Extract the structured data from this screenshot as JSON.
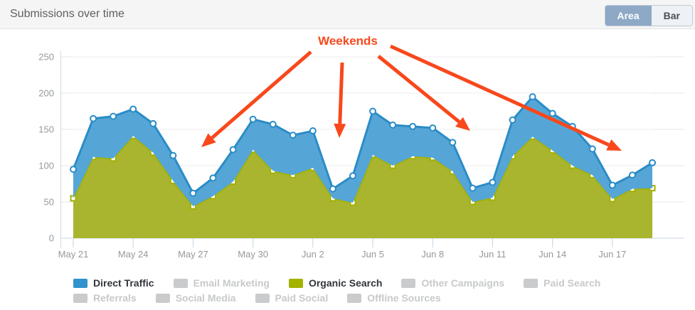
{
  "header": {
    "title": "Submissions over time",
    "view_toggle": {
      "area_label": "Area",
      "bar_label": "Bar",
      "selected": "Area"
    }
  },
  "chart_data": {
    "type": "area",
    "stacked": true,
    "title": "Submissions over time",
    "x": [
      "May 21",
      "May 22",
      "May 23",
      "May 24",
      "May 25",
      "May 26",
      "May 27",
      "May 28",
      "May 29",
      "May 30",
      "May 31",
      "Jun 1",
      "Jun 2",
      "Jun 3",
      "Jun 4",
      "Jun 5",
      "Jun 6",
      "Jun 7",
      "Jun 8",
      "Jun 9",
      "Jun 10",
      "Jun 11",
      "Jun 12",
      "Jun 13",
      "Jun 14",
      "Jun 15",
      "Jun 16",
      "Jun 17",
      "Jun 18",
      "Jun 19"
    ],
    "xtick_every": 3,
    "xtick_labels": [
      "May 21",
      "May 24",
      "May 27",
      "May 30",
      "Jun 2",
      "Jun 5",
      "Jun 8",
      "Jun 11",
      "Jun 14",
      "Jun 17"
    ],
    "ylim": [
      0,
      250
    ],
    "yticks": [
      0,
      50,
      100,
      150,
      200,
      250
    ],
    "grid": true,
    "series": [
      {
        "name": "Organic Search",
        "line_color": "#a3b100",
        "fill_color": "#a9b52f",
        "marker": "square",
        "values": [
          55,
          112,
          110,
          141,
          118,
          79,
          44,
          58,
          78,
          122,
          93,
          87,
          97,
          55,
          49,
          115,
          100,
          113,
          111,
          92,
          50,
          56,
          113,
          140,
          121,
          100,
          87,
          54,
          68,
          69
        ]
      },
      {
        "name": "Direct Traffic",
        "line_color": "#2a8cc7",
        "fill_color": "#55a6d6",
        "marker": "circle",
        "values": [
          40,
          53,
          58,
          37,
          40,
          35,
          18,
          25,
          44,
          42,
          64,
          55,
          51,
          13,
          37,
          60,
          56,
          41,
          41,
          40,
          19,
          21,
          50,
          55,
          51,
          54,
          36,
          19,
          19,
          35
        ],
        "stacked_top_totals": [
          95,
          165,
          168,
          178,
          158,
          114,
          62,
          83,
          122,
          164,
          157,
          142,
          148,
          68,
          86,
          175,
          156,
          154,
          152,
          132,
          69,
          77,
          163,
          195,
          172,
          154,
          123,
          73,
          87,
          104
        ]
      }
    ],
    "annotation": {
      "text": "Weekends",
      "color": "#f8481c",
      "text_pos": [
        489,
        63
      ],
      "arrows": [
        {
          "from": [
            437,
            73
          ],
          "to": [
            283,
            207
          ]
        },
        {
          "from": [
            481,
            88
          ],
          "to": [
            477,
            194
          ]
        },
        {
          "from": [
            532,
            79
          ],
          "to": [
            661,
            184
          ]
        },
        {
          "from": [
            549,
            65
          ],
          "to": [
            874,
            212
          ]
        }
      ]
    }
  },
  "legend": {
    "active_text_color": "#32363c",
    "inactive_text_color": "#c7c9cb",
    "inactive_swatch_color": "#c9cbcd",
    "rows": [
      [
        {
          "label": "Direct Traffic",
          "active": true,
          "color": "#3193cd"
        },
        {
          "label": "Email Marketing",
          "active": false
        },
        {
          "label": "Organic Search",
          "active": true,
          "color": "#a2b400"
        },
        {
          "label": "Other Campaigns",
          "active": false
        },
        {
          "label": "Paid Search",
          "active": false
        }
      ],
      [
        {
          "label": "Referrals",
          "active": false
        },
        {
          "label": "Social Media",
          "active": false
        },
        {
          "label": "Paid Social",
          "active": false
        },
        {
          "label": "Offline Sources",
          "active": false
        }
      ]
    ]
  }
}
